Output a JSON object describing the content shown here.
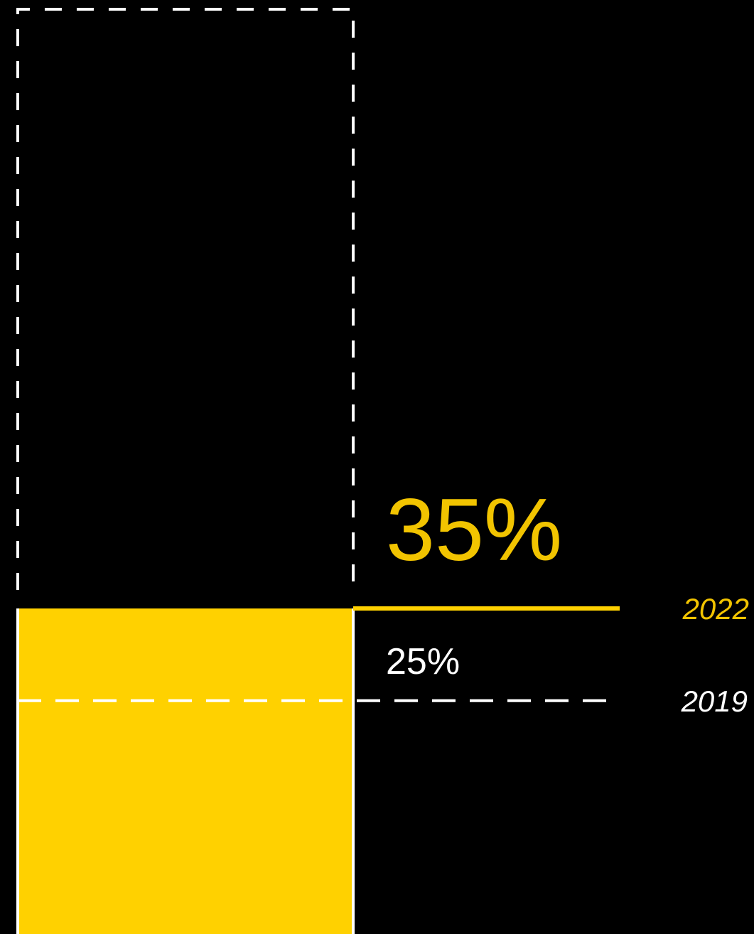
{
  "colors": {
    "background": "#000000",
    "accent_yellow": "#FFD100",
    "label_yellow": "#F2C400",
    "white": "#FFFFFF"
  },
  "chart_data": {
    "type": "bar",
    "title": "",
    "xlabel": "",
    "ylabel": "",
    "ylim": [
      0,
      100
    ],
    "grid": false,
    "bar": {
      "value": 35,
      "capacity": 100,
      "fill_color": "#FFD100",
      "outline": "dashed-white"
    },
    "reference_lines": [
      {
        "year": "2022",
        "value": 35,
        "value_label": "35%",
        "style": "solid",
        "color": "#FFD100"
      },
      {
        "year": "2019",
        "value": 25,
        "value_label": "25%",
        "style": "dashed",
        "color": "#FFFFFF"
      }
    ]
  }
}
